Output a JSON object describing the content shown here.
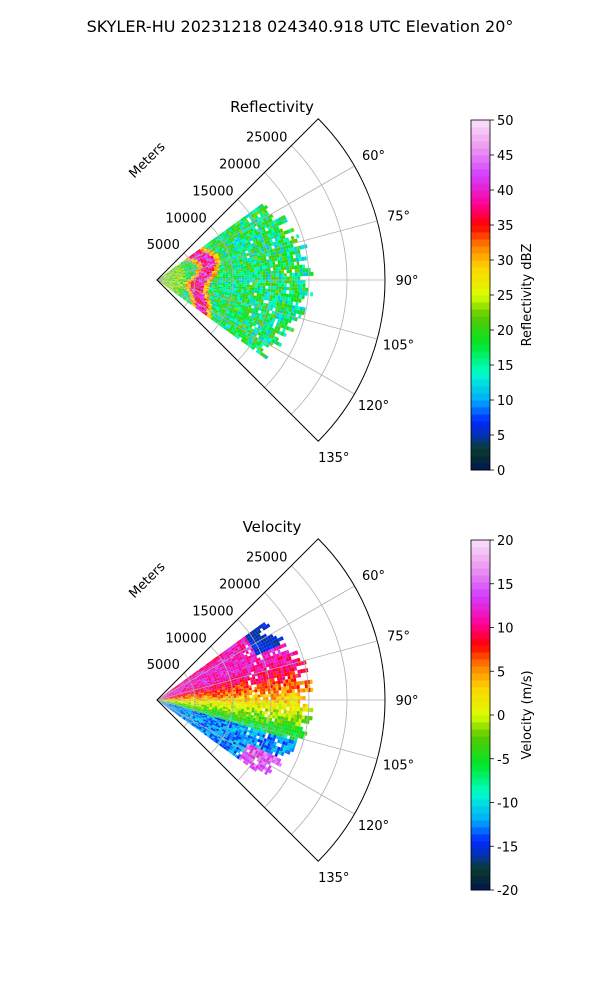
{
  "suptitle": "SKYLER-HU  20231218  024340.918 UTC Elevation 20°",
  "chart_data": [
    {
      "type": "heatmap",
      "projection": "polar-sector",
      "title": "Reflectivity",
      "radial_label": "Meters",
      "radial_ticks": [
        "5000",
        "10000",
        "15000",
        "20000",
        "25000"
      ],
      "radial_values": [
        5000,
        10000,
        15000,
        20000,
        25000
      ],
      "r_max": 30000,
      "angle_ticks": [
        "60°",
        "75°",
        "90°",
        "105°",
        "120°",
        "135°"
      ],
      "angle_values": [
        60,
        75,
        90,
        105,
        120,
        135
      ],
      "theta_range": [
        45,
        135
      ],
      "data_azimuth_range": [
        54,
        126
      ],
      "colorbar": {
        "label": "Reflectivity dBZ",
        "ticks": [
          "0",
          "5",
          "10",
          "15",
          "20",
          "25",
          "30",
          "35",
          "40",
          "45",
          "50"
        ],
        "range": [
          0,
          50
        ]
      },
      "description": "Mostly 10–25 dBZ echo out to ~18000 m, with a ring of 30–45 dBZ at ~5000–7000 m"
    },
    {
      "type": "heatmap",
      "projection": "polar-sector",
      "title": "Velocity",
      "radial_label": "Meters",
      "radial_ticks": [
        "5000",
        "10000",
        "15000",
        "20000",
        "25000"
      ],
      "radial_values": [
        5000,
        10000,
        15000,
        20000,
        25000
      ],
      "r_max": 30000,
      "angle_ticks": [
        "60°",
        "75°",
        "90°",
        "105°",
        "120°",
        "135°"
      ],
      "angle_values": [
        60,
        75,
        90,
        105,
        120,
        135
      ],
      "theta_range": [
        45,
        135
      ],
      "data_azimuth_range": [
        54,
        126
      ],
      "colorbar": {
        "label": "Velocity (m/s)",
        "ticks": [
          "-20",
          "-15",
          "-10",
          "-5",
          "0",
          "5",
          "10",
          "15",
          "20"
        ],
        "range": [
          -20,
          20
        ]
      },
      "description": "Positive 10–18 m/s velocities at 60–80°, near 0 m/s around 90°, negative -5 to -15 m/s at 100–125°"
    }
  ]
}
